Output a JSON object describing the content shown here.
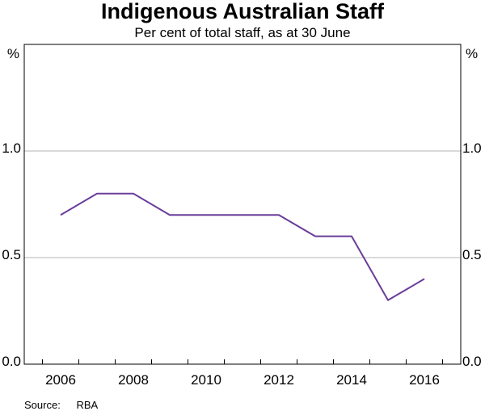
{
  "chart_data": {
    "type": "line",
    "title": "Indigenous Australian Staff",
    "subtitle": "Per cent of total staff, as at 30 June",
    "unit_label": "%",
    "ylim": [
      0,
      1.5
    ],
    "yticks": [
      "0.0",
      "0.5",
      "1.0"
    ],
    "ytick_values": [
      0,
      0.5,
      1.0
    ],
    "xticks": [
      "2006",
      "2008",
      "2010",
      "2012",
      "2014",
      "2016"
    ],
    "xtick_values": [
      2006,
      2008,
      2010,
      2012,
      2014,
      2016
    ],
    "xlim": [
      2005,
      2017
    ],
    "grid": true,
    "series": [
      {
        "x": [
          2006,
          2007,
          2008,
          2009,
          2010,
          2011,
          2012,
          2013,
          2014,
          2015,
          2016
        ],
        "values": [
          0.7,
          0.8,
          0.8,
          0.7,
          0.7,
          0.7,
          0.7,
          0.6,
          0.6,
          0.3,
          0.4
        ],
        "color": "#6a3d9a"
      }
    ],
    "source_label": "Source:",
    "source_value": "RBA"
  }
}
